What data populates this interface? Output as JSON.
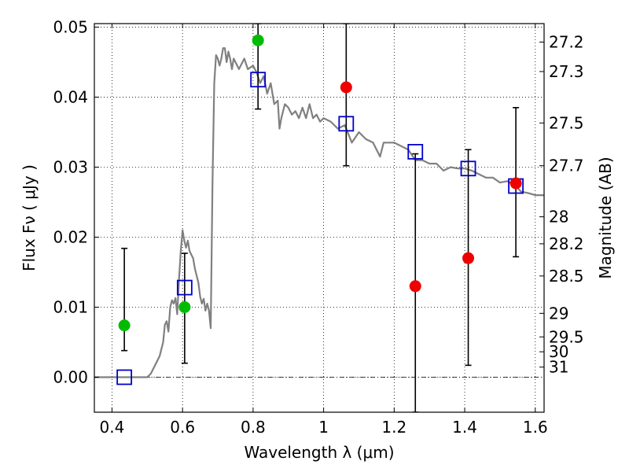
{
  "chart_data": {
    "type": "scatter",
    "xlabel": "Wavelength  λ (μm)",
    "ylabel": "Flux  Fν  ( μJy )",
    "y2label": "Magnitude (AB)",
    "xlim": [
      0.35,
      1.625
    ],
    "ylim": [
      -0.005,
      0.0505
    ],
    "grid": true,
    "x_ticks": [
      {
        "value": 0.4,
        "label": "0.4"
      },
      {
        "value": 0.6,
        "label": "0.6"
      },
      {
        "value": 0.8,
        "label": "0.8"
      },
      {
        "value": 1.0,
        "label": "1"
      },
      {
        "value": 1.2,
        "label": "1.2"
      },
      {
        "value": 1.4,
        "label": "1.4"
      },
      {
        "value": 1.6,
        "label": "1.6"
      }
    ],
    "y_ticks": [
      {
        "value": 0.0,
        "label": "0.00"
      },
      {
        "value": 0.01,
        "label": "0.01"
      },
      {
        "value": 0.02,
        "label": "0.02"
      },
      {
        "value": 0.03,
        "label": "0.03"
      },
      {
        "value": 0.04,
        "label": "0.04"
      },
      {
        "value": 0.05,
        "label": "0.05"
      }
    ],
    "magnitude_ticks": [
      {
        "mag": 27.2,
        "label": "27.2"
      },
      {
        "mag": 27.3,
        "label": "27.3"
      },
      {
        "mag": 27.5,
        "label": "27.5"
      },
      {
        "mag": 27.7,
        "label": "27.7"
      },
      {
        "mag": 28.0,
        "label": "28"
      },
      {
        "mag": 28.2,
        "label": "28.2"
      },
      {
        "mag": 28.5,
        "label": "28.5"
      },
      {
        "mag": 29.0,
        "label": "29"
      },
      {
        "mag": 29.5,
        "label": "29.5"
      },
      {
        "mag": 30.0,
        "label": "30"
      },
      {
        "mag": 31.0,
        "label": "31"
      }
    ],
    "model_spectrum": {
      "color": "#808080",
      "points": [
        [
          0.35,
          0.0
        ],
        [
          0.5,
          0.0
        ],
        [
          0.51,
          0.0005
        ],
        [
          0.52,
          0.0015
        ],
        [
          0.535,
          0.003
        ],
        [
          0.545,
          0.005
        ],
        [
          0.55,
          0.0075
        ],
        [
          0.555,
          0.008
        ],
        [
          0.56,
          0.0065
        ],
        [
          0.565,
          0.01
        ],
        [
          0.57,
          0.011
        ],
        [
          0.575,
          0.0105
        ],
        [
          0.58,
          0.0113
        ],
        [
          0.585,
          0.009
        ],
        [
          0.59,
          0.014
        ],
        [
          0.595,
          0.018
        ],
        [
          0.6,
          0.021
        ],
        [
          0.605,
          0.0195
        ],
        [
          0.61,
          0.0185
        ],
        [
          0.615,
          0.0195
        ],
        [
          0.62,
          0.018
        ],
        [
          0.63,
          0.017
        ],
        [
          0.635,
          0.0155
        ],
        [
          0.64,
          0.0145
        ],
        [
          0.645,
          0.0135
        ],
        [
          0.65,
          0.0115
        ],
        [
          0.655,
          0.0105
        ],
        [
          0.66,
          0.0112
        ],
        [
          0.665,
          0.0095
        ],
        [
          0.67,
          0.0105
        ],
        [
          0.675,
          0.0095
        ],
        [
          0.68,
          0.007
        ],
        [
          0.685,
          0.028
        ],
        [
          0.69,
          0.042
        ],
        [
          0.695,
          0.046
        ],
        [
          0.7,
          0.0455
        ],
        [
          0.705,
          0.0445
        ],
        [
          0.71,
          0.0455
        ],
        [
          0.715,
          0.047
        ],
        [
          0.72,
          0.047
        ],
        [
          0.725,
          0.045
        ],
        [
          0.73,
          0.0465
        ],
        [
          0.735,
          0.0455
        ],
        [
          0.74,
          0.044
        ],
        [
          0.745,
          0.0455
        ],
        [
          0.75,
          0.045
        ],
        [
          0.76,
          0.044
        ],
        [
          0.775,
          0.0455
        ],
        [
          0.785,
          0.044
        ],
        [
          0.8,
          0.0445
        ],
        [
          0.81,
          0.0435
        ],
        [
          0.82,
          0.042
        ],
        [
          0.83,
          0.043
        ],
        [
          0.84,
          0.0405
        ],
        [
          0.85,
          0.042
        ],
        [
          0.86,
          0.039
        ],
        [
          0.87,
          0.0395
        ],
        [
          0.875,
          0.0355
        ],
        [
          0.88,
          0.037
        ],
        [
          0.89,
          0.039
        ],
        [
          0.9,
          0.0385
        ],
        [
          0.91,
          0.0375
        ],
        [
          0.92,
          0.038
        ],
        [
          0.93,
          0.037
        ],
        [
          0.94,
          0.0385
        ],
        [
          0.95,
          0.037
        ],
        [
          0.96,
          0.039
        ],
        [
          0.97,
          0.037
        ],
        [
          0.98,
          0.0375
        ],
        [
          0.99,
          0.0365
        ],
        [
          1.0,
          0.037
        ],
        [
          1.02,
          0.0365
        ],
        [
          1.04,
          0.0355
        ],
        [
          1.06,
          0.036
        ],
        [
          1.08,
          0.0335
        ],
        [
          1.1,
          0.035
        ],
        [
          1.12,
          0.034
        ],
        [
          1.14,
          0.0335
        ],
        [
          1.16,
          0.0315
        ],
        [
          1.17,
          0.0335
        ],
        [
          1.2,
          0.0335
        ],
        [
          1.22,
          0.033
        ],
        [
          1.24,
          0.0325
        ],
        [
          1.26,
          0.031
        ],
        [
          1.28,
          0.031
        ],
        [
          1.3,
          0.0305
        ],
        [
          1.32,
          0.0305
        ],
        [
          1.34,
          0.0295
        ],
        [
          1.36,
          0.03
        ],
        [
          1.38,
          0.0298
        ],
        [
          1.4,
          0.0298
        ],
        [
          1.42,
          0.0295
        ],
        [
          1.44,
          0.029
        ],
        [
          1.46,
          0.0285
        ],
        [
          1.48,
          0.0285
        ],
        [
          1.5,
          0.0278
        ],
        [
          1.52,
          0.028
        ],
        [
          1.54,
          0.0275
        ],
        [
          1.56,
          0.0265
        ],
        [
          1.58,
          0.0263
        ],
        [
          1.6,
          0.026
        ],
        [
          1.625,
          0.026
        ]
      ]
    },
    "series": [
      {
        "marker": "open-square",
        "color": "#0000cc",
        "points": [
          {
            "x": 0.435,
            "y": 0.0
          },
          {
            "x": 0.606,
            "y": 0.0128
          },
          {
            "x": 0.814,
            "y": 0.0425
          },
          {
            "x": 1.064,
            "y": 0.0362
          },
          {
            "x": 1.26,
            "y": 0.0322
          },
          {
            "x": 1.41,
            "y": 0.0298
          },
          {
            "x": 1.545,
            "y": 0.0273
          }
        ]
      },
      {
        "marker": "filled-circle",
        "color": "#00bb00",
        "points": [
          {
            "x": 0.435,
            "y": 0.0074,
            "yerr_low": 0.0038,
            "yerr_high": 0.0184
          },
          {
            "x": 0.606,
            "y": 0.01,
            "yerr_low": 0.002,
            "yerr_high": 0.0177
          },
          {
            "x": 0.814,
            "y": 0.0481,
            "yerr_low": 0.0383,
            "yerr_high": 0.0505
          }
        ]
      },
      {
        "marker": "filled-circle",
        "color": "#ee0000",
        "points": [
          {
            "x": 1.064,
            "y": 0.0414,
            "yerr_low": 0.0302,
            "yerr_high": 0.0505
          },
          {
            "x": 1.26,
            "y": 0.013,
            "yerr_low": -0.005,
            "yerr_high": 0.0319
          },
          {
            "x": 1.41,
            "y": 0.017,
            "yerr_low": 0.0017,
            "yerr_high": 0.0325
          },
          {
            "x": 1.545,
            "y": 0.0277,
            "yerr_low": 0.0172,
            "yerr_high": 0.0385
          }
        ]
      }
    ]
  }
}
